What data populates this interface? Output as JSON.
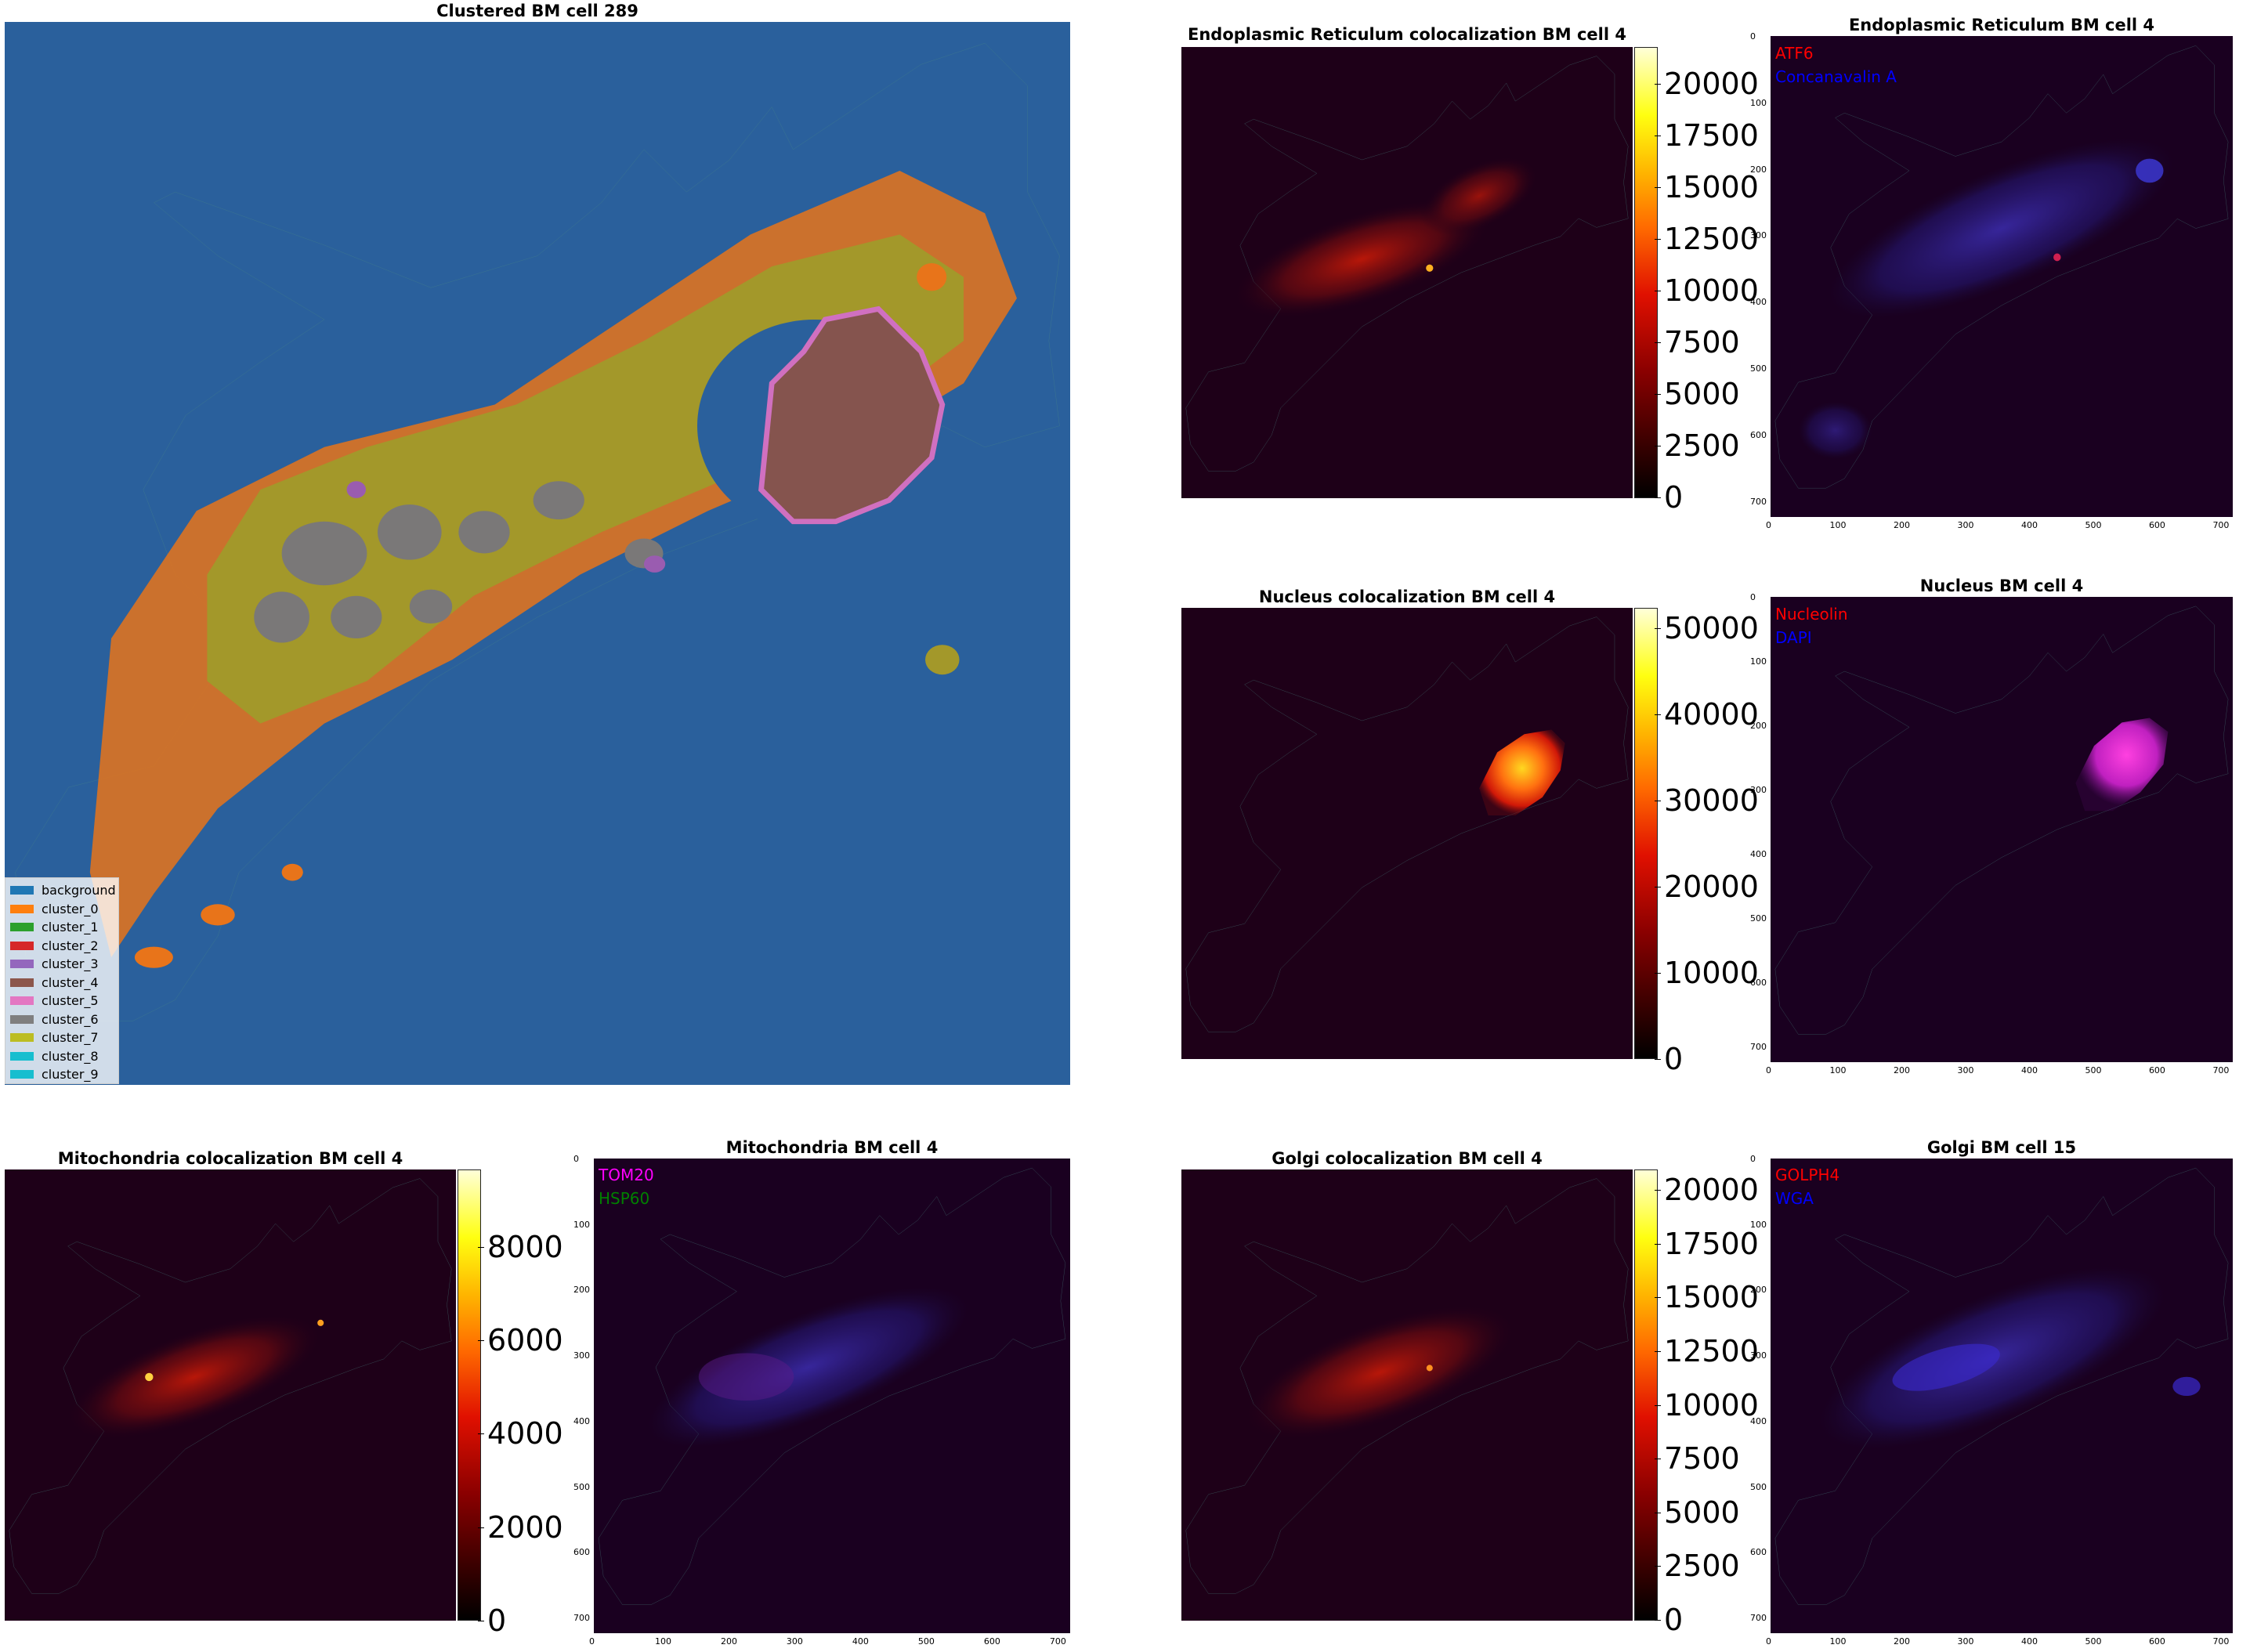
{
  "panels": {
    "clustered": {
      "title": "Clustered BM cell 289",
      "legend": [
        {
          "label": "background",
          "color": "#1f77b4"
        },
        {
          "label": "cluster_0",
          "color": "#ff7f0e"
        },
        {
          "label": "cluster_1",
          "color": "#2ca02c"
        },
        {
          "label": "cluster_2",
          "color": "#d62728"
        },
        {
          "label": "cluster_3",
          "color": "#9467bd"
        },
        {
          "label": "cluster_4",
          "color": "#8c564b"
        },
        {
          "label": "cluster_5",
          "color": "#e377c2"
        },
        {
          "label": "cluster_6",
          "color": "#7f7f7f"
        },
        {
          "label": "cluster_7",
          "color": "#bcbd22"
        },
        {
          "label": "cluster_8",
          "color": "#17becf"
        },
        {
          "label": "cluster_9",
          "color": "#17becf"
        }
      ]
    },
    "er_coloc": {
      "title": "Endoplasmic Reticulum colocalization BM cell 4",
      "colorbar_ticks": [
        "20000",
        "17500",
        "15000",
        "12500",
        "10000",
        "7500",
        "5000",
        "2500",
        "0"
      ]
    },
    "er": {
      "title": "Endoplasmic Reticulum BM cell 4",
      "label_a": "ATF6",
      "label_a_color": "#ff0000",
      "label_b": "Concanavalin A",
      "label_b_color": "#0000ff"
    },
    "nucleus_coloc": {
      "title": "Nucleus colocalization BM cell 4",
      "colorbar_ticks": [
        "50000",
        "40000",
        "30000",
        "20000",
        "10000",
        "0"
      ]
    },
    "nucleus": {
      "title": "Nucleus BM cell 4",
      "label_a": "Nucleolin",
      "label_a_color": "#ff0000",
      "label_b": "DAPI",
      "label_b_color": "#0000ff"
    },
    "mito_coloc": {
      "title": "Mitochondria colocalization BM cell 4",
      "colorbar_ticks": [
        "8000",
        "6000",
        "4000",
        "2000",
        "0"
      ]
    },
    "mito": {
      "title": "Mitochondria BM cell 4",
      "label_a": "TOM20",
      "label_a_color": "#ff00ff",
      "label_b": "HSP60",
      "label_b_color": "#008000"
    },
    "golgi_coloc": {
      "title": "Golgi colocalization BM cell 4",
      "colorbar_ticks": [
        "20000",
        "17500",
        "15000",
        "12500",
        "10000",
        "7500",
        "5000",
        "2500",
        "0"
      ]
    },
    "golgi": {
      "title": "Golgi BM cell 15",
      "label_a": "GOLPH4",
      "label_a_color": "#ff0000",
      "label_b": "WGA",
      "label_b_color": "#0000ff"
    }
  },
  "axis_ticks": {
    "x": [
      "0",
      "100",
      "200",
      "300",
      "400",
      "500",
      "600",
      "700"
    ],
    "y": [
      "0",
      "100",
      "200",
      "300",
      "400",
      "500",
      "600",
      "700"
    ]
  }
}
